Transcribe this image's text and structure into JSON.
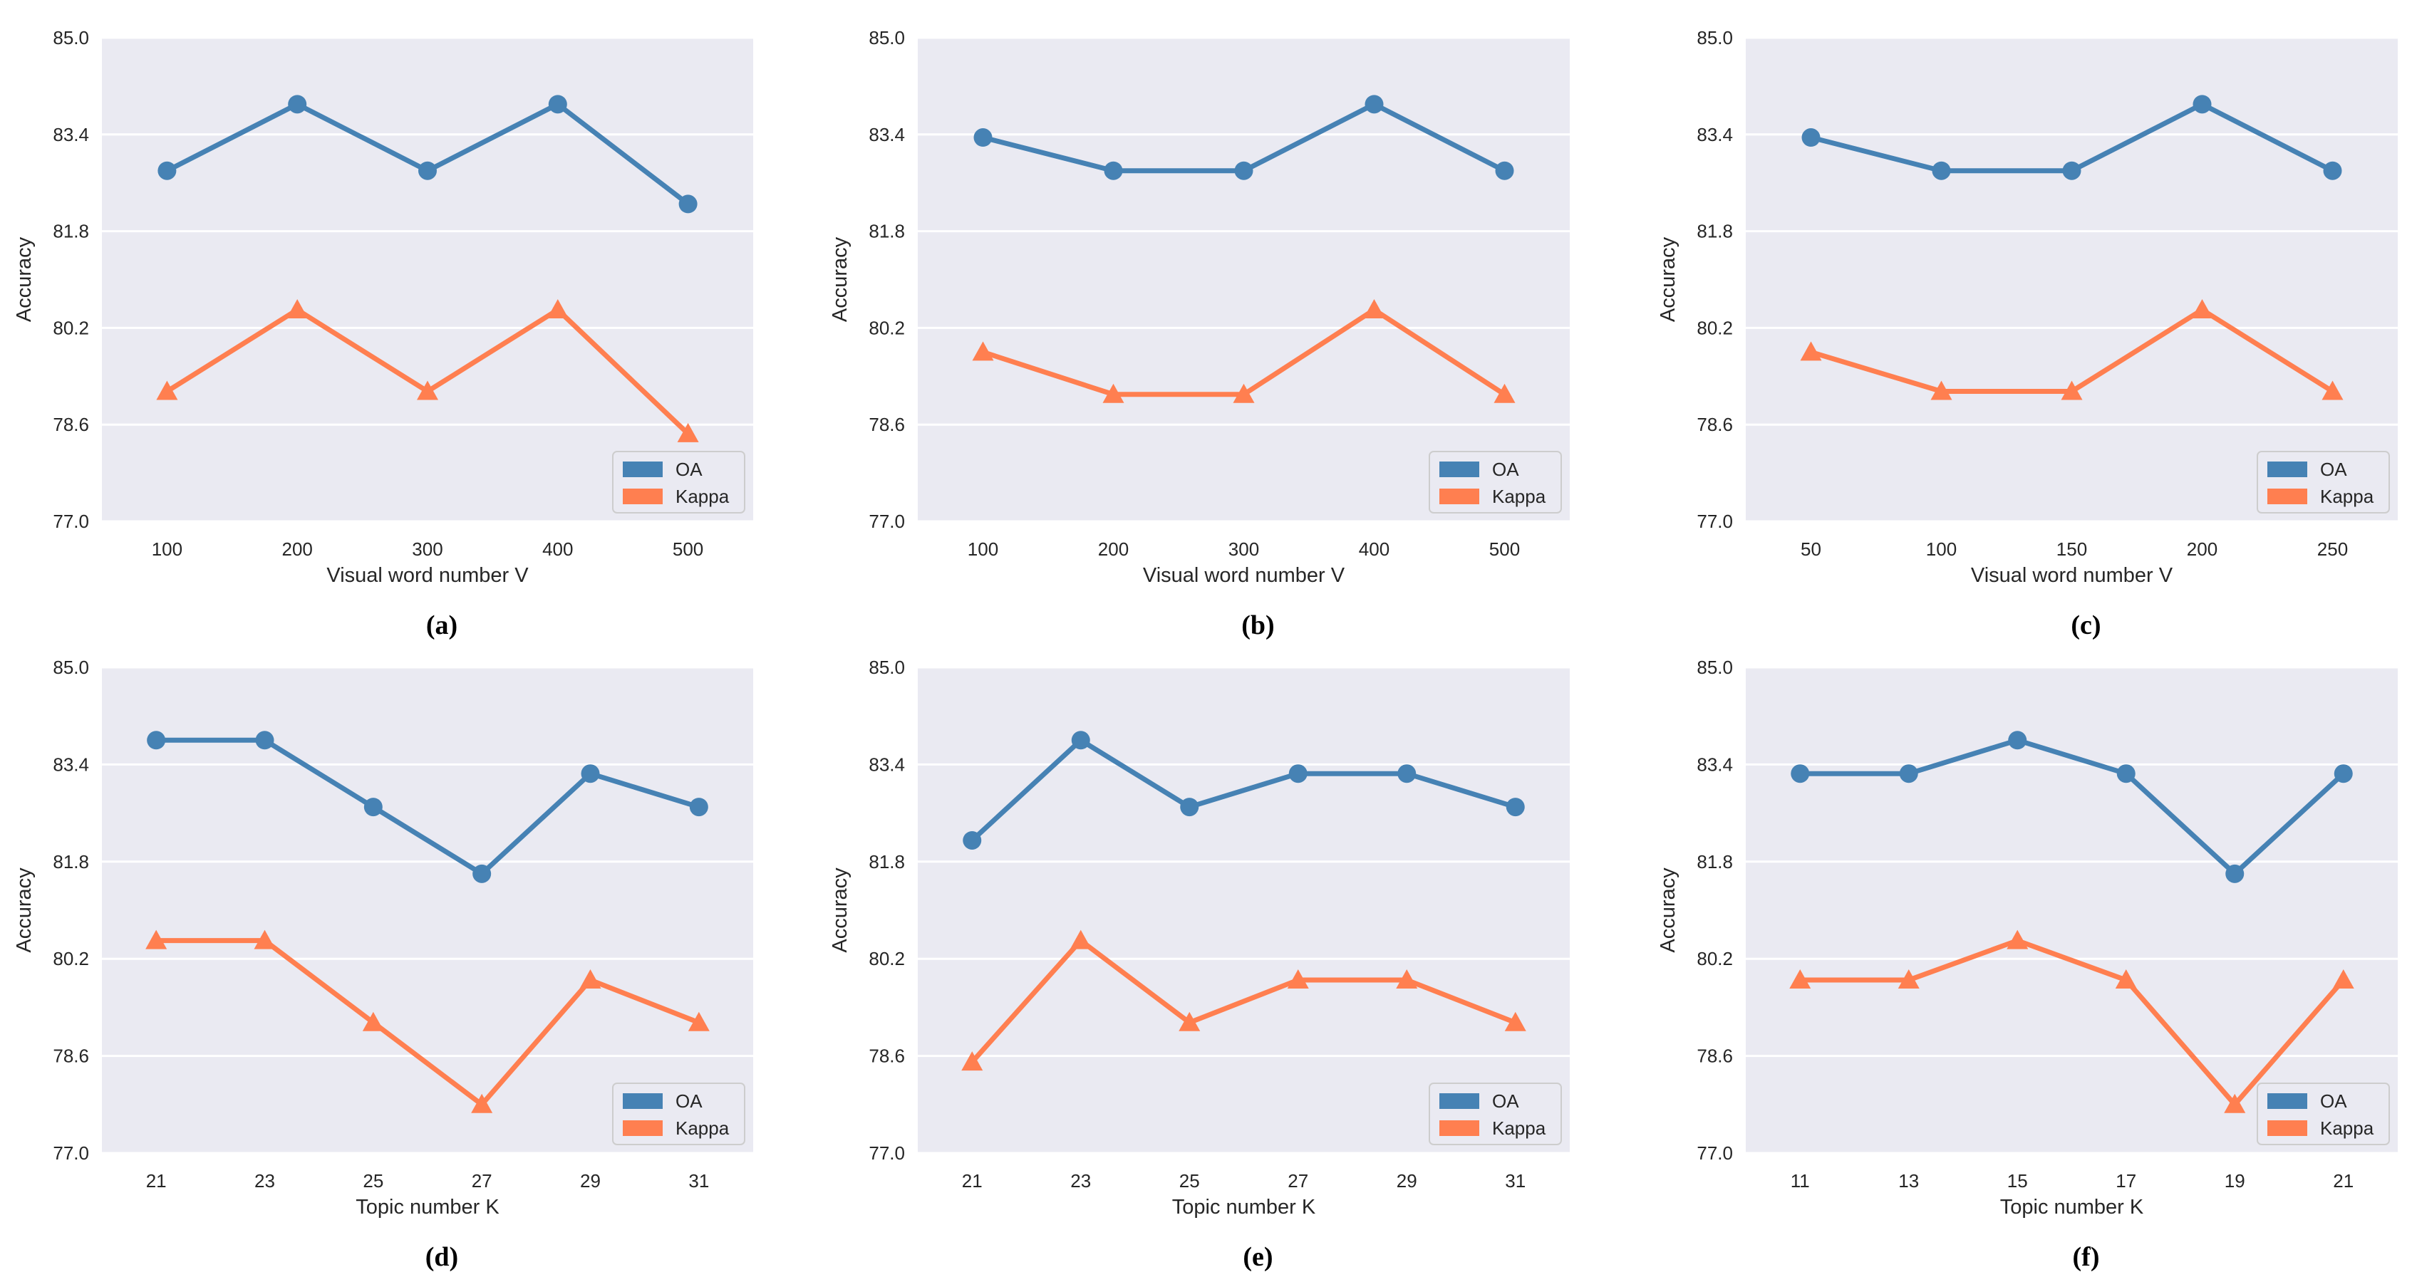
{
  "chart_data": [
    {
      "panel_label": "(a)",
      "type": "line",
      "xlabel": "Visual word number V",
      "ylabel": "Accuracy",
      "ylim": [
        77.0,
        85.0
      ],
      "yticks": [
        "77.0",
        "78.6",
        "80.2",
        "81.8",
        "83.4",
        "85.0"
      ],
      "categories": [
        "100",
        "200",
        "300",
        "400",
        "500"
      ],
      "legend_position": "bottom-right",
      "series": [
        {
          "name": "OA",
          "marker": "circle",
          "color": "#4682b4",
          "values": [
            82.8,
            83.9,
            82.8,
            83.9,
            82.25
          ]
        },
        {
          "name": "Kappa",
          "marker": "triangle",
          "color": "#ff7f50",
          "values": [
            79.15,
            80.5,
            79.15,
            80.5,
            78.45
          ]
        }
      ]
    },
    {
      "panel_label": "(b)",
      "type": "line",
      "xlabel": "Visual word number V",
      "ylabel": "Accuracy",
      "ylim": [
        77.0,
        85.0
      ],
      "yticks": [
        "77.0",
        "78.6",
        "80.2",
        "81.8",
        "83.4",
        "85.0"
      ],
      "categories": [
        "100",
        "200",
        "300",
        "400",
        "500"
      ],
      "legend_position": "bottom-right",
      "series": [
        {
          "name": "OA",
          "marker": "circle",
          "color": "#4682b4",
          "values": [
            83.35,
            82.8,
            82.8,
            83.9,
            82.8
          ]
        },
        {
          "name": "Kappa",
          "marker": "triangle",
          "color": "#ff7f50",
          "values": [
            79.8,
            79.1,
            79.1,
            80.5,
            79.1
          ]
        }
      ]
    },
    {
      "panel_label": "(c)",
      "type": "line",
      "xlabel": "Visual word number V",
      "ylabel": "Accuracy",
      "ylim": [
        77.0,
        85.0
      ],
      "yticks": [
        "77.0",
        "78.6",
        "80.2",
        "81.8",
        "83.4",
        "85.0"
      ],
      "categories": [
        "50",
        "100",
        "150",
        "200",
        "250"
      ],
      "legend_position": "bottom-right",
      "series": [
        {
          "name": "OA",
          "marker": "circle",
          "color": "#4682b4",
          "values": [
            83.35,
            82.8,
            82.8,
            83.9,
            82.8
          ]
        },
        {
          "name": "Kappa",
          "marker": "triangle",
          "color": "#ff7f50",
          "values": [
            79.8,
            79.15,
            79.15,
            80.5,
            79.15
          ]
        }
      ]
    },
    {
      "panel_label": "(d)",
      "type": "line",
      "xlabel": "Topic number K",
      "ylabel": "Accuracy",
      "ylim": [
        77.0,
        85.0
      ],
      "yticks": [
        "77.0",
        "78.6",
        "80.2",
        "81.8",
        "83.4",
        "85.0"
      ],
      "categories": [
        "21",
        "23",
        "25",
        "27",
        "29",
        "31"
      ],
      "legend_position": "bottom-right",
      "series": [
        {
          "name": "OA",
          "marker": "circle",
          "color": "#4682b4",
          "values": [
            83.8,
            83.8,
            82.7,
            81.6,
            83.25,
            82.7
          ]
        },
        {
          "name": "Kappa",
          "marker": "triangle",
          "color": "#ff7f50",
          "values": [
            80.5,
            80.5,
            79.15,
            77.8,
            79.85,
            79.15
          ]
        }
      ]
    },
    {
      "panel_label": "(e)",
      "type": "line",
      "xlabel": "Topic number K",
      "ylabel": "Accuracy",
      "ylim": [
        77.0,
        85.0
      ],
      "yticks": [
        "77.0",
        "78.6",
        "80.2",
        "81.8",
        "83.4",
        "85.0"
      ],
      "categories": [
        "21",
        "23",
        "25",
        "27",
        "29",
        "31"
      ],
      "legend_position": "bottom-right",
      "series": [
        {
          "name": "OA",
          "marker": "circle",
          "color": "#4682b4",
          "values": [
            82.15,
            83.8,
            82.7,
            83.25,
            83.25,
            82.7
          ]
        },
        {
          "name": "Kappa",
          "marker": "triangle",
          "color": "#ff7f50",
          "values": [
            78.5,
            80.5,
            79.15,
            79.85,
            79.85,
            79.15
          ]
        }
      ]
    },
    {
      "panel_label": "(f)",
      "type": "line",
      "xlabel": "Topic number K",
      "ylabel": "Accuracy",
      "ylim": [
        77.0,
        85.0
      ],
      "yticks": [
        "77.0",
        "78.6",
        "80.2",
        "81.8",
        "83.4",
        "85.0"
      ],
      "categories": [
        "11",
        "13",
        "15",
        "17",
        "19",
        "21"
      ],
      "legend_position": "bottom-right",
      "series": [
        {
          "name": "OA",
          "marker": "circle",
          "color": "#4682b4",
          "values": [
            83.25,
            83.25,
            83.8,
            83.25,
            81.6,
            83.25
          ]
        },
        {
          "name": "Kappa",
          "marker": "triangle",
          "color": "#ff7f50",
          "values": [
            79.85,
            79.85,
            80.5,
            79.85,
            77.8,
            79.85
          ]
        }
      ]
    }
  ]
}
